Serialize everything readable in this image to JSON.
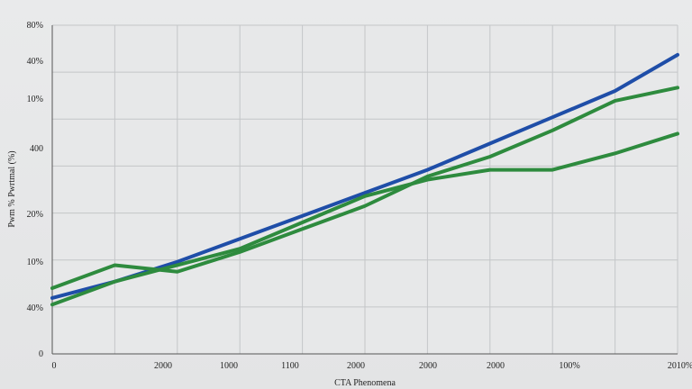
{
  "chart_data": {
    "type": "line",
    "title": "",
    "xlabel": "CTA Phenomena",
    "ylabel": "Pwm % Pwrtmal (%)",
    "x_tick_labels": [
      "0",
      "2000",
      "1000",
      "1100",
      "2000",
      "2000",
      "2000",
      "100%",
      "2010%"
    ],
    "y_tick_labels": [
      "0",
      "40%",
      "10%",
      "20%",
      "400",
      "10%",
      "40%",
      "80%"
    ],
    "x": [
      0,
      1,
      2,
      3,
      4,
      5,
      6,
      7,
      8,
      9,
      10
    ],
    "ylim": [
      0,
      100
    ],
    "grid": true,
    "series": [
      {
        "color": "#1f4ea8",
        "values": [
          17,
          22,
          28,
          35,
          42,
          49,
          56,
          64,
          72,
          80,
          91
        ]
      },
      {
        "color": "#2e8b3e",
        "values": [
          20,
          27,
          25,
          31,
          38,
          45,
          54,
          60,
          68,
          77,
          81
        ]
      },
      {
        "color": "#2e8b3e",
        "values": [
          15,
          22,
          27,
          32,
          40,
          48,
          53,
          56,
          56,
          61,
          67
        ]
      }
    ]
  }
}
